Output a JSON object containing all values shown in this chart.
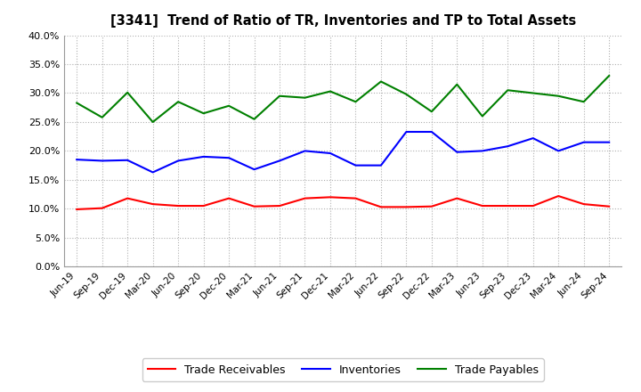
{
  "title": "[3341]  Trend of Ratio of TR, Inventories and TP to Total Assets",
  "x_labels": [
    "Jun-19",
    "Sep-19",
    "Dec-19",
    "Mar-20",
    "Jun-20",
    "Sep-20",
    "Dec-20",
    "Mar-21",
    "Jun-21",
    "Sep-21",
    "Dec-21",
    "Mar-22",
    "Jun-22",
    "Sep-22",
    "Dec-22",
    "Mar-23",
    "Jun-23",
    "Sep-23",
    "Dec-23",
    "Mar-24",
    "Jun-24",
    "Sep-24"
  ],
  "trade_receivables": [
    0.099,
    0.101,
    0.118,
    0.108,
    0.105,
    0.105,
    0.118,
    0.104,
    0.105,
    0.118,
    0.12,
    0.118,
    0.103,
    0.103,
    0.104,
    0.118,
    0.105,
    0.105,
    0.105,
    0.122,
    0.108,
    0.104
  ],
  "inventories": [
    0.185,
    0.183,
    0.184,
    0.163,
    0.183,
    0.19,
    0.188,
    0.168,
    0.183,
    0.2,
    0.196,
    0.175,
    0.175,
    0.233,
    0.233,
    0.198,
    0.2,
    0.208,
    0.222,
    0.2,
    0.215,
    0.215
  ],
  "trade_payables": [
    0.283,
    0.258,
    0.301,
    0.25,
    0.285,
    0.265,
    0.278,
    0.255,
    0.295,
    0.292,
    0.303,
    0.285,
    0.32,
    0.298,
    0.268,
    0.315,
    0.26,
    0.305,
    0.3,
    0.295,
    0.285,
    0.33
  ],
  "tr_color": "#ff0000",
  "inv_color": "#0000ff",
  "tp_color": "#008000",
  "ylim": [
    0.0,
    0.4
  ],
  "yticks": [
    0.0,
    0.05,
    0.1,
    0.15,
    0.2,
    0.25,
    0.3,
    0.35,
    0.4
  ],
  "legend_labels": [
    "Trade Receivables",
    "Inventories",
    "Trade Payables"
  ],
  "background_color": "#ffffff",
  "grid_color": "#b0b0b0"
}
